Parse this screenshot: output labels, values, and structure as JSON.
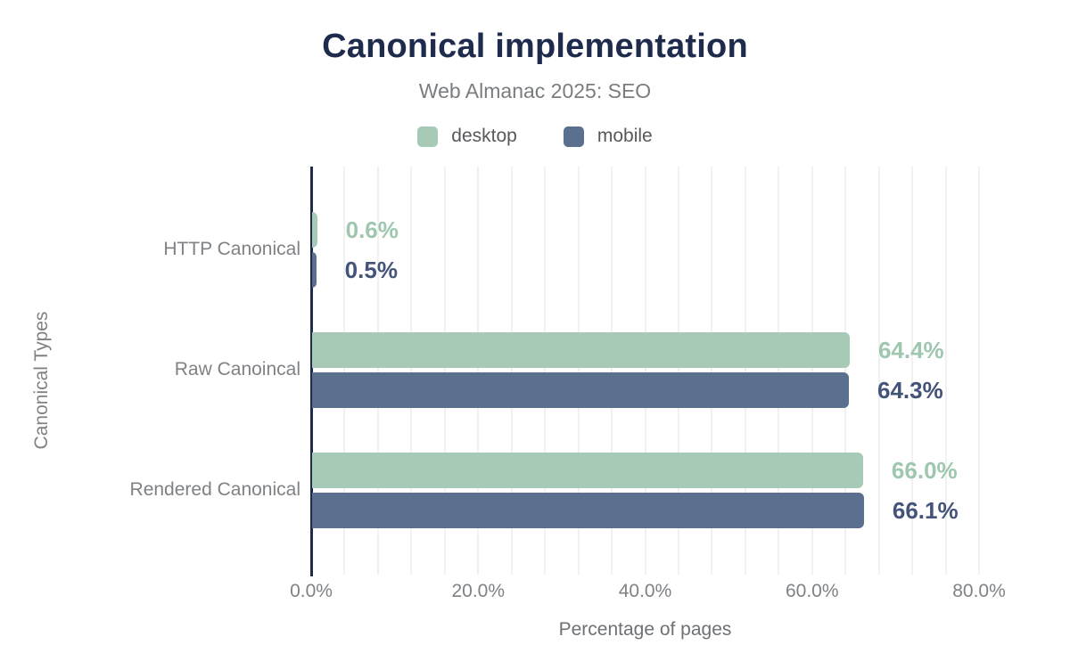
{
  "chart_data": {
    "type": "bar",
    "orientation": "horizontal",
    "title": "Canonical implementation",
    "subtitle": "Web Almanac 2025: SEO",
    "xlabel": "Percentage of pages",
    "ylabel": "Canonical Types",
    "categories": [
      "HTTP Canonical",
      "Raw Canoincal",
      "Rendered Canonical"
    ],
    "series": [
      {
        "name": "desktop",
        "color": "#a7cab7",
        "label_color": "#9fc7b0",
        "values": [
          0.6,
          64.4,
          66.0
        ],
        "value_labels": [
          "0.6%",
          "64.4%",
          "66.0%"
        ]
      },
      {
        "name": "mobile",
        "color": "#5b6f8f",
        "label_color": "#44537a",
        "values": [
          0.5,
          64.3,
          66.1
        ],
        "value_labels": [
          "0.5%",
          "64.3%",
          "66.1%"
        ]
      }
    ],
    "x_ticks": [
      {
        "value": 0,
        "label": "0.0%"
      },
      {
        "value": 20,
        "label": "20.0%"
      },
      {
        "value": 40,
        "label": "40.0%"
      },
      {
        "value": 60,
        "label": "60.0%"
      },
      {
        "value": 80,
        "label": "80.0%"
      }
    ],
    "xlim": [
      0,
      80
    ],
    "grid_step_pct": 4,
    "grid": true,
    "legend_position": "top"
  },
  "colors": {
    "title": "#1e2b4d",
    "subtitle": "#7a7d80",
    "axis_line": "#1f2c49",
    "gridline": "#f1f1f1",
    "tick_text": "#7f8285",
    "axis_title_text": "#6e7174",
    "background": "#ffffff"
  }
}
